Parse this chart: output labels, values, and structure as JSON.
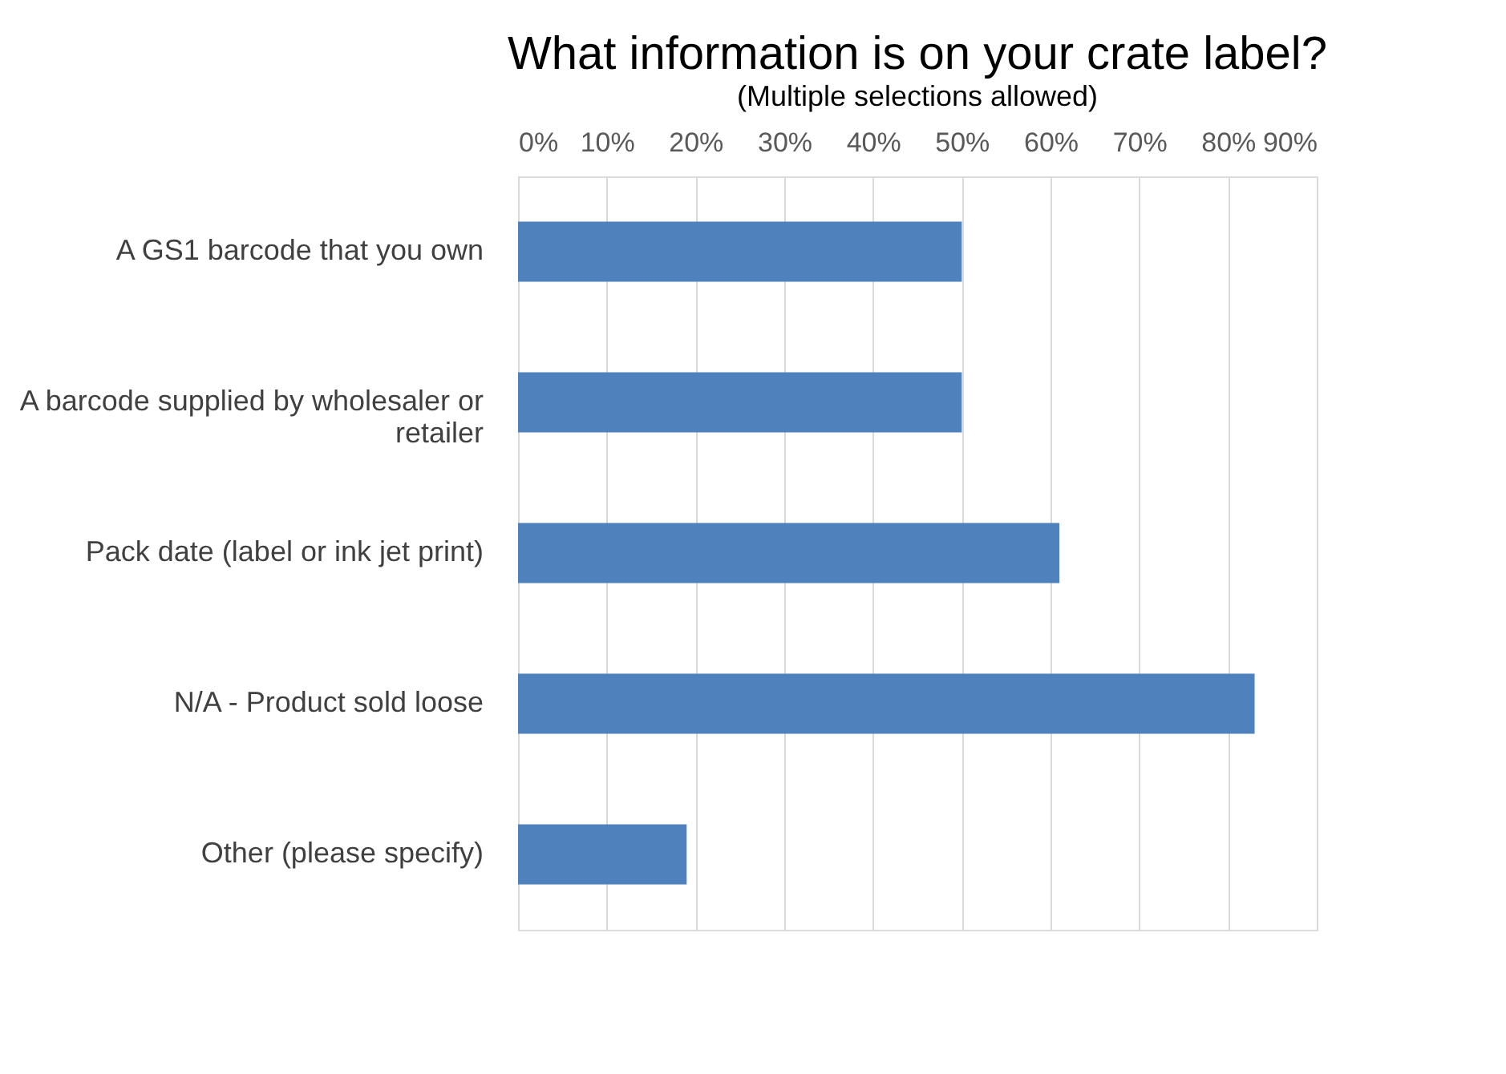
{
  "chart_data": {
    "type": "bar",
    "orientation": "horizontal",
    "title": "What information is on your crate label?",
    "subtitle": "(Multiple selections allowed)",
    "categories": [
      "A GS1 barcode that you own",
      "A barcode supplied by wholesaler or retailer",
      "Pack date (label or ink jet print)",
      "N/A - Product sold loose",
      "Other (please specify)"
    ],
    "values": [
      50,
      50,
      61,
      83,
      19
    ],
    "color": "#4f81bd",
    "xlim": [
      0,
      90
    ],
    "xticks": [
      {
        "value": 0,
        "label": "0%"
      },
      {
        "value": 10,
        "label": "10%"
      },
      {
        "value": 20,
        "label": "20%"
      },
      {
        "value": 30,
        "label": "30%"
      },
      {
        "value": 40,
        "label": "40%"
      },
      {
        "value": 50,
        "label": "50%"
      },
      {
        "value": 60,
        "label": "60%"
      },
      {
        "value": 70,
        "label": "70%"
      },
      {
        "value": 80,
        "label": "80%"
      },
      {
        "value": 90,
        "label": "90%"
      }
    ],
    "grid": "x"
  }
}
